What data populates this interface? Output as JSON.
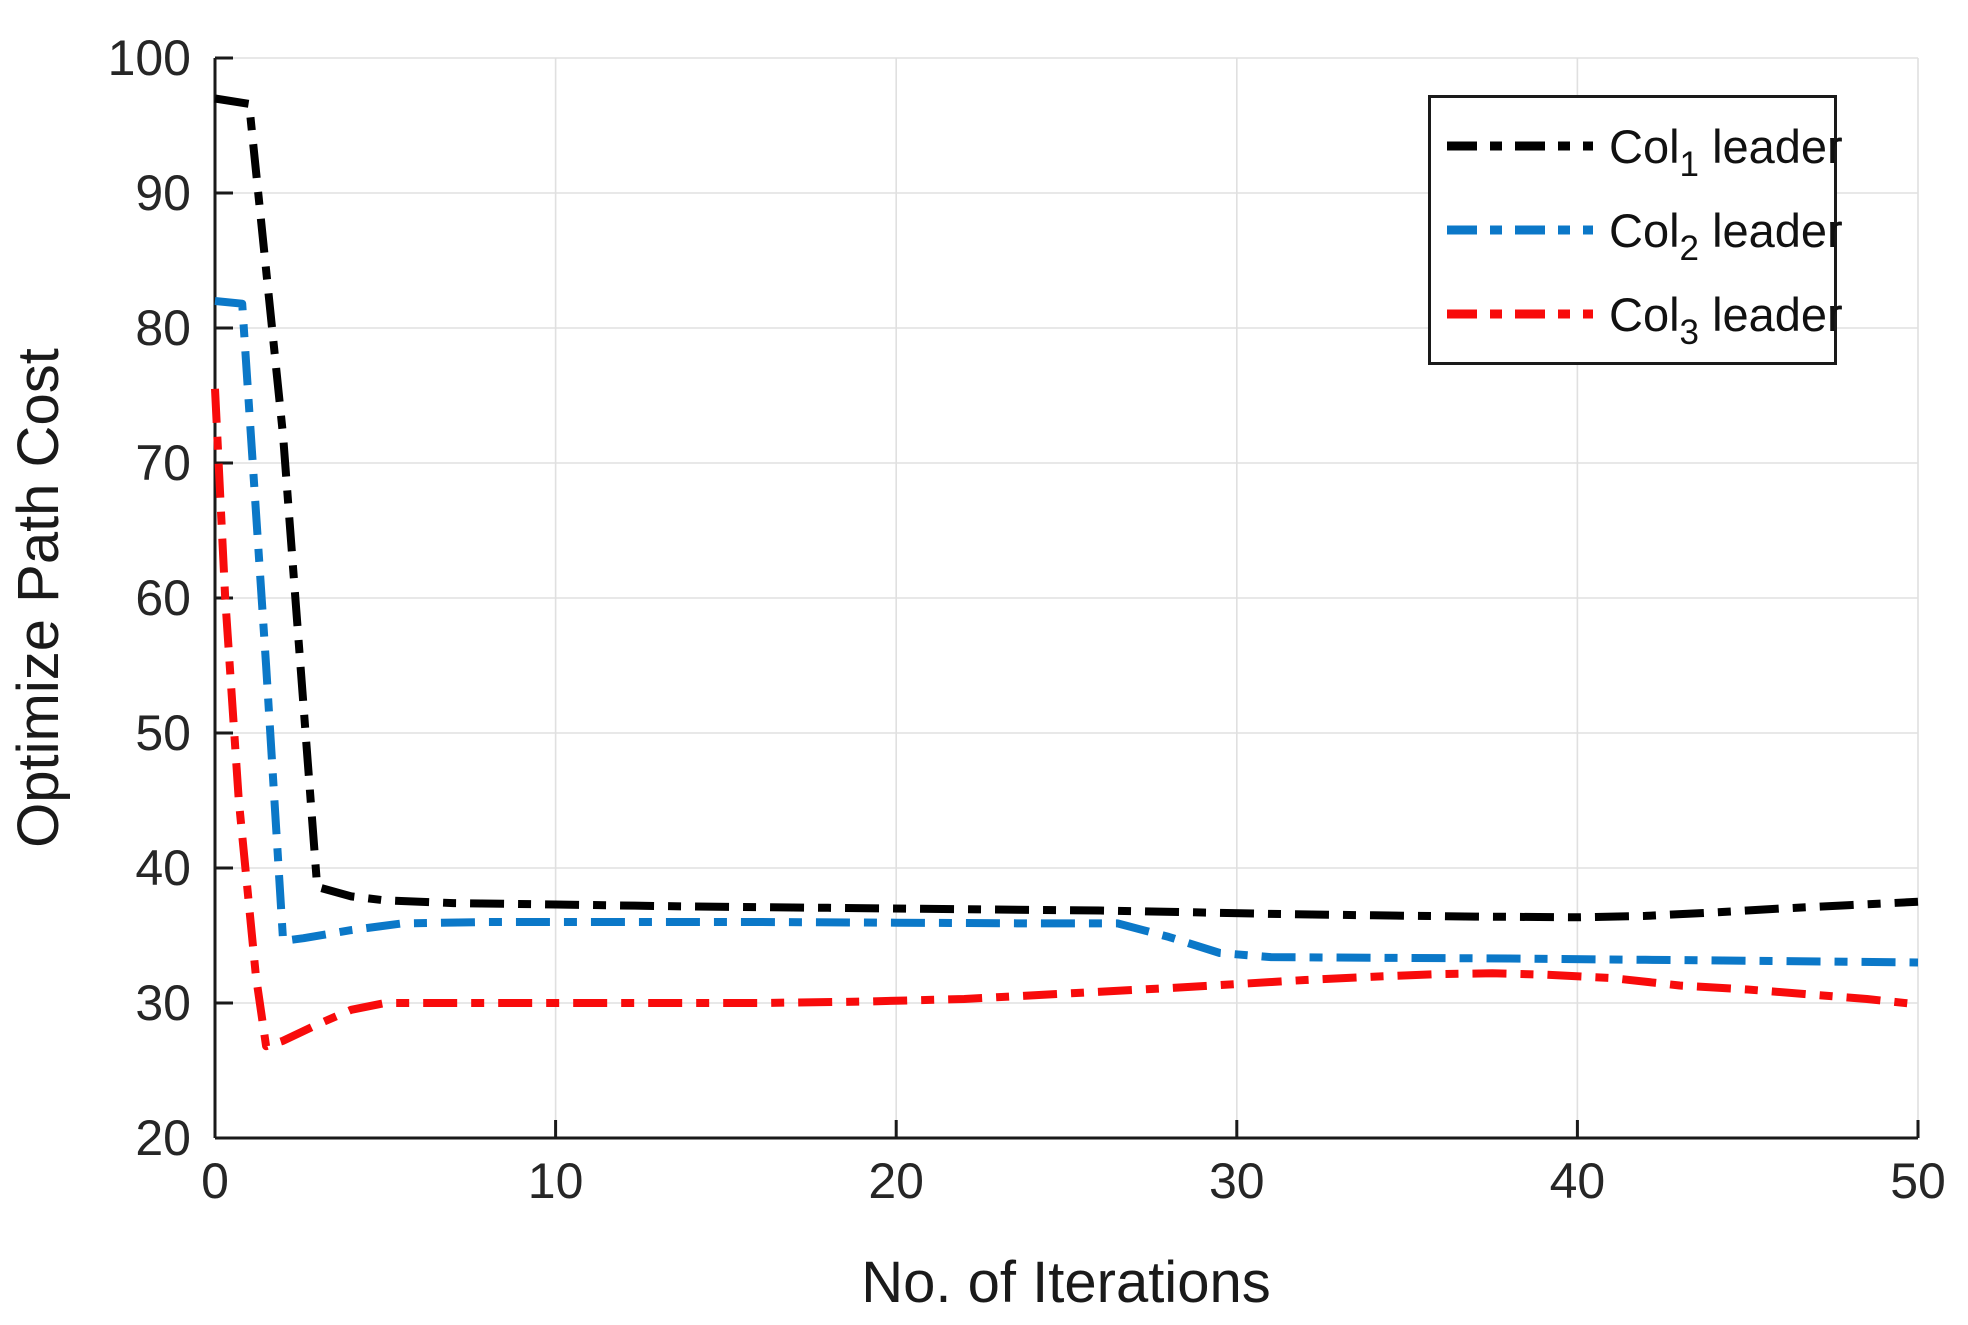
{
  "chart_data": {
    "type": "line",
    "xlabel": "No. of Iterations",
    "ylabel": "Optimize Path Cost",
    "xlim": [
      0,
      50
    ],
    "ylim": [
      20,
      100
    ],
    "xticks": [
      0,
      10,
      20,
      30,
      40,
      50
    ],
    "yticks": [
      20,
      30,
      40,
      50,
      60,
      70,
      80,
      90,
      100
    ],
    "grid": "on",
    "grid_color": "#e0e0e0",
    "axis_color": "#1a1a1a",
    "tick_label_color": "#262626",
    "legend_position": "top-right",
    "line_style": "dash-dot",
    "series": [
      {
        "name": "col1-leader",
        "label_prefix": "Col",
        "label_sub": "1",
        "label_suffix": "leader",
        "color": "#000000",
        "points": [
          [
            0,
            97
          ],
          [
            1,
            96.6
          ],
          [
            2,
            72
          ],
          [
            3,
            38.6
          ],
          [
            4,
            37.9
          ],
          [
            5,
            37.6
          ],
          [
            7,
            37.4
          ],
          [
            10,
            37.3
          ],
          [
            14,
            37.15
          ],
          [
            18,
            37.05
          ],
          [
            22,
            36.95
          ],
          [
            26,
            36.85
          ],
          [
            29,
            36.7
          ],
          [
            31,
            36.6
          ],
          [
            34,
            36.5
          ],
          [
            37,
            36.4
          ],
          [
            40,
            36.35
          ],
          [
            42,
            36.45
          ],
          [
            44,
            36.7
          ],
          [
            46,
            37.0
          ],
          [
            48,
            37.25
          ],
          [
            50,
            37.5
          ]
        ]
      },
      {
        "name": "col2-leader",
        "label_prefix": "Col",
        "label_sub": "2",
        "label_suffix": "leader",
        "color": "#0b78c8",
        "points": [
          [
            0,
            82
          ],
          [
            0.8,
            81.8
          ],
          [
            1.5,
            55
          ],
          [
            2,
            34.6
          ],
          [
            2.6,
            34.8
          ],
          [
            4,
            35.4
          ],
          [
            5.5,
            35.9
          ],
          [
            8,
            36.0
          ],
          [
            12,
            36.0
          ],
          [
            16,
            36.0
          ],
          [
            20,
            35.95
          ],
          [
            24,
            35.9
          ],
          [
            26.5,
            35.9
          ],
          [
            28,
            34.9
          ],
          [
            29.5,
            33.7
          ],
          [
            31,
            33.4
          ],
          [
            34,
            33.35
          ],
          [
            38,
            33.3
          ],
          [
            42,
            33.2
          ],
          [
            46,
            33.1
          ],
          [
            50,
            33.0
          ]
        ]
      },
      {
        "name": "col3-leader",
        "label_prefix": "Col",
        "label_sub": "3",
        "label_suffix": "leader",
        "color": "#f80b0b",
        "points": [
          [
            0,
            75.5
          ],
          [
            0.3,
            60
          ],
          [
            0.7,
            45
          ],
          [
            1.2,
            32
          ],
          [
            1.5,
            26.8
          ],
          [
            2,
            27.2
          ],
          [
            3,
            28.4
          ],
          [
            4,
            29.5
          ],
          [
            5,
            30.0
          ],
          [
            8,
            30.0
          ],
          [
            12,
            30.0
          ],
          [
            16,
            30.0
          ],
          [
            19,
            30.1
          ],
          [
            22,
            30.3
          ],
          [
            25,
            30.7
          ],
          [
            28,
            31.1
          ],
          [
            30,
            31.4
          ],
          [
            32,
            31.7
          ],
          [
            34,
            31.95
          ],
          [
            36,
            32.15
          ],
          [
            37.5,
            32.2
          ],
          [
            39,
            32.1
          ],
          [
            41,
            31.85
          ],
          [
            43,
            31.3
          ],
          [
            45,
            31.0
          ],
          [
            47,
            30.6
          ],
          [
            48.5,
            30.3
          ],
          [
            50,
            29.9
          ]
        ]
      }
    ]
  }
}
